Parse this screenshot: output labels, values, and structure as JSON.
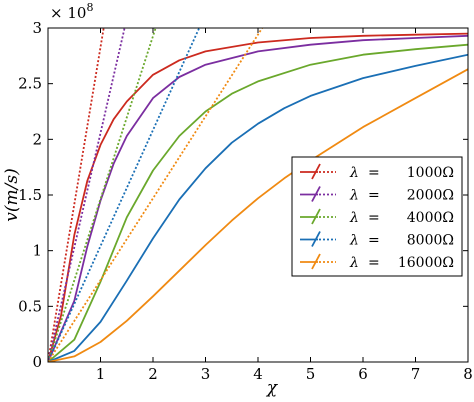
{
  "chart_data": {
    "type": "line",
    "xlabel": "χ",
    "ylabel": "v(m/s)",
    "xlim": [
      0,
      8
    ],
    "ylim": [
      0,
      3.0
    ],
    "y_multiplier_label": "×10^8",
    "y_multiplier_text": "× 10",
    "y_multiplier_exp": "8",
    "xticks": [
      1,
      2,
      3,
      4,
      5,
      6,
      7,
      8
    ],
    "yticks": [
      0,
      0.5,
      1,
      1.5,
      2,
      2.5,
      3
    ],
    "ytick_labels": [
      "0",
      "0.5",
      "1",
      "1.5",
      "2",
      "2.5",
      "3"
    ],
    "grid": false,
    "legend_position": "center-right",
    "asymptote": {
      "y": 3.0,
      "style": "dotted",
      "color": "#000000"
    },
    "series": [
      {
        "name": "λ = 1000Ω",
        "legend_lambda": "λ",
        "legend_eq": "=",
        "legend_value": "1000Ω",
        "color": "#cc2a1f",
        "solid": {
          "x": [
            0,
            0.25,
            0.5,
            0.75,
            1.0,
            1.25,
            1.5,
            2,
            2.5,
            3,
            4,
            5,
            6,
            7,
            8
          ],
          "y": [
            0,
            0.42,
            1.14,
            1.63,
            1.95,
            2.18,
            2.34,
            2.58,
            2.71,
            2.79,
            2.87,
            2.91,
            2.93,
            2.94,
            2.95
          ]
        },
        "dotted": {
          "x": [
            0,
            1.06
          ],
          "y": [
            0,
            3.0
          ]
        }
      },
      {
        "name": "λ = 2000Ω",
        "legend_lambda": "λ",
        "legend_eq": "=",
        "legend_value": "2000Ω",
        "color": "#7b2ea0",
        "solid": {
          "x": [
            0,
            0.5,
            0.75,
            1.0,
            1.25,
            1.5,
            2,
            2.5,
            3,
            4,
            5,
            6,
            7,
            8
          ],
          "y": [
            0,
            0.55,
            1.04,
            1.45,
            1.78,
            2.03,
            2.37,
            2.56,
            2.67,
            2.79,
            2.85,
            2.89,
            2.91,
            2.93
          ]
        },
        "dotted": {
          "x": [
            0,
            1.46
          ],
          "y": [
            0,
            3.0
          ]
        }
      },
      {
        "name": "λ = 4000Ω",
        "legend_lambda": "λ",
        "legend_eq": "=",
        "legend_value": "4000Ω",
        "color": "#6aa82c",
        "solid": {
          "x": [
            0,
            0.5,
            1.0,
            1.5,
            2.0,
            2.5,
            3,
            3.5,
            4,
            5,
            6,
            7,
            8
          ],
          "y": [
            0,
            0.2,
            0.72,
            1.3,
            1.72,
            2.03,
            2.25,
            2.41,
            2.52,
            2.67,
            2.76,
            2.81,
            2.85
          ]
        },
        "dotted": {
          "x": [
            0,
            2.05
          ],
          "y": [
            0,
            3.0
          ]
        }
      },
      {
        "name": "λ = 8000Ω",
        "legend_lambda": "λ",
        "legend_eq": "=",
        "legend_value": "8000Ω",
        "color": "#1a6fb5",
        "solid": {
          "x": [
            0,
            0.5,
            1.0,
            1.5,
            2.0,
            2.5,
            3,
            3.5,
            4,
            4.5,
            5,
            6,
            7,
            8
          ],
          "y": [
            0,
            0.1,
            0.36,
            0.73,
            1.11,
            1.46,
            1.74,
            1.97,
            2.14,
            2.28,
            2.39,
            2.55,
            2.66,
            2.76
          ]
        },
        "dotted": {
          "x": [
            0,
            2.88
          ],
          "y": [
            0,
            3.0
          ]
        }
      },
      {
        "name": "λ = 16000Ω",
        "legend_lambda": "λ",
        "legend_eq": "=",
        "legend_value": "16000Ω",
        "color": "#f08a12",
        "solid": {
          "x": [
            0,
            0.5,
            1.0,
            1.5,
            2.0,
            2.5,
            3,
            3.5,
            4,
            4.5,
            5,
            6,
            7,
            8
          ],
          "y": [
            0,
            0.05,
            0.18,
            0.37,
            0.59,
            0.82,
            1.05,
            1.27,
            1.47,
            1.65,
            1.81,
            2.11,
            2.37,
            2.63
          ]
        },
        "dotted": {
          "x": [
            0,
            4.08
          ],
          "y": [
            0,
            3.0
          ]
        }
      }
    ]
  }
}
